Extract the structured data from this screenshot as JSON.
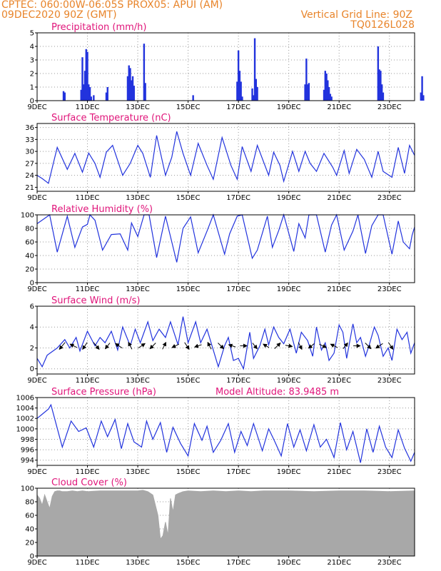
{
  "header": {
    "line1_left": "CPTEC:    060:00W-06:05S    PROX05: APUI (AM)",
    "line2_left": "09DEC2020 90Z (GMT)",
    "line2_right": "Vertical Grid Line: 90Z",
    "line3_right": "TQ0126L028",
    "text_color": "#e8842a"
  },
  "colors": {
    "title": "#e0157a",
    "series": "#2233dd",
    "cloud": "#a8a8a8",
    "grid": "#999999",
    "arrow": "#000000"
  },
  "x_ticks": [
    "9DEC",
    "11DEC",
    "13DEC",
    "15DEC",
    "17DEC",
    "19DEC",
    "21DEC",
    "23DEC"
  ],
  "panels": [
    {
      "id": "precip",
      "title": "Precipitation (mm/h)"
    },
    {
      "id": "temp",
      "title": "Surface Temperature (nC)"
    },
    {
      "id": "rh",
      "title": "Relative Humidity (%)"
    },
    {
      "id": "wind",
      "title": "Surface Wind (m/s)"
    },
    {
      "id": "press",
      "title": "Surface Pressure (hPa)",
      "extra": "Model Altitude: 83.9485 m"
    },
    {
      "id": "cloud",
      "title": "Cloud Cover (%)"
    }
  ],
  "chart_data": [
    {
      "id": "precip",
      "type": "bar",
      "title": "Precipitation (mm/h)",
      "x_unit": "days since 09DEC2020 00Z",
      "ylim": [
        0,
        5
      ],
      "yticks": [
        0,
        1,
        2,
        3,
        4,
        5
      ],
      "grid": true,
      "x": [
        1.05,
        1.1,
        1.75,
        1.8,
        1.85,
        1.9,
        1.95,
        2.0,
        2.05,
        2.1,
        2.15,
        2.25,
        2.75,
        2.8,
        3.6,
        3.65,
        3.7,
        3.75,
        3.8,
        3.85,
        4.25,
        4.3,
        6.2,
        7.95,
        8.0,
        8.05,
        8.1,
        8.15,
        8.55,
        8.6,
        8.65,
        8.7,
        8.75,
        10.65,
        10.7,
        10.75,
        10.8,
        11.4,
        11.45,
        11.5,
        11.55,
        11.6,
        11.65,
        11.7,
        13.55,
        13.6,
        13.65,
        13.7,
        13.75,
        15.25,
        15.3,
        15.35
      ],
      "values": [
        0.7,
        0.6,
        0.8,
        3.2,
        1.2,
        2.2,
        3.8,
        3.6,
        1.2,
        1.0,
        0.3,
        0.4,
        0.6,
        1.0,
        1.8,
        2.6,
        2.4,
        1.5,
        1.8,
        1.1,
        4.2,
        1.3,
        0.4,
        1.4,
        3.7,
        2.2,
        1.4,
        0.3,
        0.9,
        0.4,
        4.6,
        1.6,
        1.0,
        1.2,
        3.1,
        1.2,
        1.3,
        0.8,
        2.2,
        2.0,
        1.5,
        1.0,
        0.5,
        0.3,
        4.0,
        2.3,
        2.2,
        1.2,
        0.6,
        0.6,
        1.8,
        0.4
      ]
    },
    {
      "id": "temp",
      "type": "line",
      "title": "Surface Temperature (nC)",
      "x_unit": "days since 09DEC2020 00Z",
      "ylim": [
        20,
        37
      ],
      "yticks": [
        21,
        24,
        27,
        30,
        33,
        36
      ],
      "grid": true,
      "x": [
        0.0,
        0.2,
        0.45,
        0.8,
        1.2,
        1.5,
        1.8,
        2.05,
        2.3,
        2.5,
        2.75,
        3.0,
        3.4,
        3.7,
        4.0,
        4.2,
        4.5,
        4.75,
        5.1,
        5.35,
        5.55,
        5.8,
        6.1,
        6.4,
        6.75,
        7.0,
        7.35,
        7.7,
        7.95,
        8.15,
        8.5,
        8.75,
        9.2,
        9.4,
        9.65,
        9.8,
        10.15,
        10.4,
        10.65,
        10.85,
        11.1,
        11.4,
        11.75,
        11.9,
        12.2,
        12.4,
        12.7,
        13.0,
        13.3,
        13.55,
        13.75,
        14.1,
        14.35,
        14.6,
        14.8,
        15.0
      ],
      "values": [
        24.0,
        23.2,
        22.0,
        31.0,
        25.5,
        29.5,
        24.8,
        29.6,
        27.0,
        23.5,
        29.8,
        31.5,
        24.0,
        27.0,
        31.5,
        29.5,
        23.5,
        34.0,
        24.0,
        28.5,
        35.0,
        29.5,
        24.0,
        32.0,
        26.5,
        23.0,
        33.5,
        26.5,
        23.0,
        31.2,
        25.0,
        31.5,
        24.0,
        29.8,
        26.5,
        22.5,
        30.0,
        25.0,
        30.0,
        27.0,
        25.0,
        29.5,
        26.0,
        24.0,
        30.2,
        24.5,
        30.5,
        28.0,
        23.5,
        30.0,
        25.0,
        23.5,
        31.0,
        24.5,
        31.5,
        29.0
      ]
    },
    {
      "id": "rh",
      "type": "line",
      "title": "Relative Humidity (%)",
      "x_unit": "days since 09DEC2020 00Z",
      "ylim": [
        0,
        100
      ],
      "yticks": [
        0,
        20,
        40,
        60,
        80,
        100
      ],
      "grid": true,
      "x": [
        0.0,
        0.5,
        0.8,
        1.2,
        1.5,
        1.8,
        2.0,
        2.1,
        2.3,
        2.6,
        2.95,
        3.3,
        3.6,
        3.75,
        4.0,
        4.25,
        4.45,
        4.75,
        5.1,
        5.3,
        5.55,
        5.8,
        6.1,
        6.4,
        6.75,
        7.0,
        7.45,
        7.65,
        7.95,
        8.15,
        8.55,
        8.75,
        9.15,
        9.35,
        9.6,
        9.8,
        10.2,
        10.4,
        10.65,
        10.8,
        11.1,
        11.45,
        11.7,
        11.9,
        12.2,
        12.55,
        12.75,
        13.05,
        13.3,
        13.55,
        13.75,
        14.1,
        14.35,
        14.55,
        14.8,
        14.9,
        15.0
      ],
      "values": [
        87.0,
        100.0,
        45.0,
        98.0,
        52.0,
        82.0,
        86.0,
        100.0,
        92.0,
        48.0,
        71.0,
        72.0,
        48.0,
        88.0,
        68.0,
        100.0,
        100.0,
        37.0,
        98.0,
        68.0,
        30.0,
        80.0,
        97.0,
        44.0,
        76.0,
        100.0,
        42.0,
        72.0,
        98.0,
        100.0,
        36.0,
        48.0,
        98.0,
        52.0,
        77.0,
        100.0,
        46.0,
        87.0,
        66.0,
        100.0,
        100.0,
        45.0,
        85.0,
        100.0,
        48.0,
        76.0,
        100.0,
        43.0,
        84.0,
        100.0,
        100.0,
        42.0,
        91.0,
        60.0,
        50.0,
        70.0,
        82.0
      ]
    },
    {
      "id": "wind",
      "type": "line",
      "title": "Surface Wind (m/s)",
      "x_unit": "days since 09DEC2020 00Z",
      "ylim": [
        -0.5,
        6
      ],
      "yticks": [
        0,
        2,
        4,
        6
      ],
      "grid": true,
      "x": [
        0.0,
        0.2,
        0.4,
        0.8,
        1.1,
        1.3,
        1.55,
        1.7,
        2.0,
        2.3,
        2.5,
        2.7,
        2.95,
        3.2,
        3.4,
        3.7,
        3.9,
        4.1,
        4.4,
        4.6,
        4.85,
        5.1,
        5.3,
        5.6,
        5.8,
        6.0,
        6.3,
        6.5,
        6.75,
        7.0,
        7.2,
        7.45,
        7.6,
        7.8,
        8.0,
        8.2,
        8.45,
        8.6,
        8.85,
        9.05,
        9.2,
        9.4,
        9.6,
        9.8,
        10.05,
        10.3,
        10.5,
        10.75,
        10.95,
        11.1,
        11.3,
        11.45,
        11.6,
        11.8,
        12.0,
        12.15,
        12.3,
        12.55,
        12.7,
        12.85,
        13.05,
        13.2,
        13.4,
        13.55,
        13.75,
        13.95,
        14.1,
        14.3,
        14.5,
        14.7,
        14.85,
        15.0
      ],
      "values": [
        1.0,
        0.2,
        1.3,
        2.0,
        2.8,
        2.0,
        3.0,
        1.7,
        3.6,
        2.2,
        3.0,
        2.5,
        3.6,
        1.8,
        4.0,
        2.2,
        3.8,
        2.5,
        4.5,
        2.7,
        3.8,
        3.0,
        4.5,
        2.3,
        5.0,
        2.5,
        4.5,
        2.5,
        3.8,
        1.8,
        0.2,
        2.2,
        3.0,
        0.8,
        1.0,
        0.0,
        3.5,
        1.0,
        2.2,
        3.8,
        2.3,
        4.0,
        3.0,
        2.4,
        3.8,
        1.5,
        3.5,
        2.7,
        1.2,
        4.0,
        1.8,
        2.5,
        0.8,
        1.5,
        4.2,
        3.5,
        1.0,
        4.3,
        2.5,
        3.0,
        1.2,
        2.3,
        4.0,
        3.2,
        1.2,
        2.0,
        0.8,
        3.8,
        2.8,
        3.5,
        1.5,
        2.5
      ]
    },
    {
      "id": "press",
      "type": "line",
      "title": "Surface Pressure (hPa)",
      "annotation": "Model Altitude: 83.9485 m",
      "x_unit": "days since 09DEC2020 00Z",
      "ylim": [
        993,
        1006
      ],
      "yticks": [
        994,
        996,
        998,
        1000,
        1002,
        1004,
        1006
      ],
      "grid": true,
      "x": [
        0.0,
        0.2,
        0.45,
        0.55,
        1.0,
        1.35,
        1.65,
        1.95,
        2.25,
        2.55,
        2.8,
        3.1,
        3.35,
        3.6,
        3.85,
        4.15,
        4.35,
        4.6,
        4.9,
        5.15,
        5.4,
        5.7,
        6.0,
        6.25,
        6.55,
        6.75,
        7.0,
        7.3,
        7.6,
        7.85,
        8.1,
        8.35,
        8.6,
        8.95,
        9.2,
        9.45,
        9.7,
        9.95,
        10.2,
        10.45,
        10.7,
        11.0,
        11.25,
        11.5,
        11.8,
        12.05,
        12.3,
        12.55,
        12.85,
        13.1,
        13.35,
        13.6,
        13.85,
        14.1,
        14.35,
        14.6,
        14.85,
        15.0
      ],
      "values": [
        1002.0,
        1002.8,
        1003.8,
        1004.6,
        996.5,
        1001.5,
        999.5,
        1000.2,
        996.5,
        1001.5,
        998.5,
        1001.8,
        996.2,
        1001.0,
        997.5,
        996.5,
        1001.5,
        998.0,
        1001.2,
        995.5,
        1000.3,
        997.2,
        994.8,
        1001.0,
        997.8,
        1000.5,
        995.5,
        997.8,
        1001.0,
        995.5,
        999.5,
        996.8,
        1001.0,
        995.8,
        1000.0,
        997.5,
        994.8,
        1001.0,
        996.5,
        999.8,
        995.8,
        1000.8,
        996.5,
        998.0,
        994.5,
        1001.2,
        996.0,
        999.5,
        993.5,
        1000.0,
        995.5,
        1000.5,
        996.5,
        994.5,
        999.8,
        996.3,
        993.8,
        995.5
      ]
    },
    {
      "id": "cloud",
      "type": "area",
      "title": "Cloud Cover (%)",
      "x_unit": "days since 09DEC2020 00Z",
      "ylim": [
        0,
        100
      ],
      "yticks": [
        0,
        20,
        40,
        60,
        80,
        100
      ],
      "grid": true,
      "x": [
        0.0,
        0.1,
        0.2,
        0.3,
        0.4,
        0.5,
        0.6,
        0.7,
        0.8,
        0.9,
        1.0,
        1.2,
        1.4,
        1.6,
        1.8,
        2.0,
        2.5,
        3.0,
        3.5,
        4.0,
        4.2,
        4.4,
        4.6,
        4.8,
        4.9,
        5.0,
        5.1,
        5.2,
        5.3,
        5.4,
        5.5,
        5.6,
        5.8,
        6.0,
        6.5,
        7.0,
        7.5,
        8.0,
        8.5,
        9.0,
        10.0,
        11.0,
        12.0,
        13.0,
        14.0,
        15.0
      ],
      "values": [
        90,
        85,
        75,
        90,
        80,
        70,
        88,
        95,
        96,
        96,
        95,
        95,
        96,
        95,
        96,
        95,
        96,
        96,
        96,
        96,
        97,
        95,
        90,
        60,
        25,
        30,
        50,
        30,
        85,
        65,
        90,
        92,
        95,
        96,
        95,
        96,
        95,
        96,
        95,
        96,
        96,
        95,
        96,
        96,
        95,
        96
      ]
    }
  ]
}
